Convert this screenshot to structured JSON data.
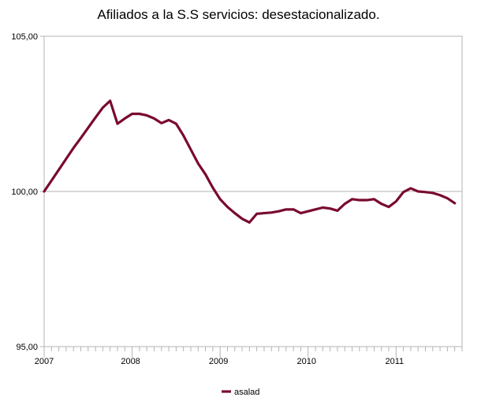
{
  "chart_data": {
    "type": "line",
    "title": "Afiliados a la S.S servicios: desestacionalizado.",
    "xlabel": "",
    "ylabel": "",
    "ylim": [
      95,
      105
    ],
    "yticks": [
      "95,00",
      "100,00",
      "105,00"
    ],
    "yticks_values": [
      95,
      100,
      105
    ],
    "xticks": [
      "2007",
      "2008",
      "2009",
      "2010",
      "2011"
    ],
    "xticks_values": [
      0,
      12,
      24,
      36,
      48
    ],
    "x_range": [
      0,
      57
    ],
    "grid": "horizontal",
    "legend_position": "bottom",
    "series": [
      {
        "name": "asalad",
        "color": "#7a0a2e",
        "points": [
          [
            0,
            100.0
          ],
          [
            1,
            100.35
          ],
          [
            2,
            100.7
          ],
          [
            3,
            101.05
          ],
          [
            4,
            101.4
          ],
          [
            5,
            101.72
          ],
          [
            6,
            102.05
          ],
          [
            7,
            102.38
          ],
          [
            8,
            102.7
          ],
          [
            9,
            102.92
          ],
          [
            10,
            102.18
          ],
          [
            11,
            102.35
          ],
          [
            12,
            102.5
          ],
          [
            13,
            102.5
          ],
          [
            14,
            102.45
          ],
          [
            15,
            102.35
          ],
          [
            16,
            102.2
          ],
          [
            17,
            102.3
          ],
          [
            18,
            102.18
          ],
          [
            19,
            101.8
          ],
          [
            20,
            101.35
          ],
          [
            21,
            100.9
          ],
          [
            22,
            100.55
          ],
          [
            23,
            100.12
          ],
          [
            24,
            99.75
          ],
          [
            25,
            99.5
          ],
          [
            26,
            99.3
          ],
          [
            27,
            99.12
          ],
          [
            28,
            99.0
          ],
          [
            29,
            99.28
          ],
          [
            30,
            99.3
          ],
          [
            31,
            99.32
          ],
          [
            32,
            99.36
          ],
          [
            33,
            99.42
          ],
          [
            34,
            99.42
          ],
          [
            35,
            99.3
          ],
          [
            36,
            99.36
          ],
          [
            37,
            99.42
          ],
          [
            38,
            99.48
          ],
          [
            39,
            99.45
          ],
          [
            40,
            99.38
          ],
          [
            41,
            99.6
          ],
          [
            42,
            99.75
          ],
          [
            43,
            99.72
          ],
          [
            44,
            99.72
          ],
          [
            45,
            99.75
          ],
          [
            46,
            99.6
          ],
          [
            47,
            99.5
          ],
          [
            48,
            99.68
          ],
          [
            49,
            99.98
          ],
          [
            50,
            100.1
          ],
          [
            51,
            100.0
          ],
          [
            52,
            99.98
          ],
          [
            53,
            99.95
          ],
          [
            54,
            99.88
          ],
          [
            55,
            99.78
          ],
          [
            56,
            99.62
          ]
        ]
      }
    ]
  }
}
